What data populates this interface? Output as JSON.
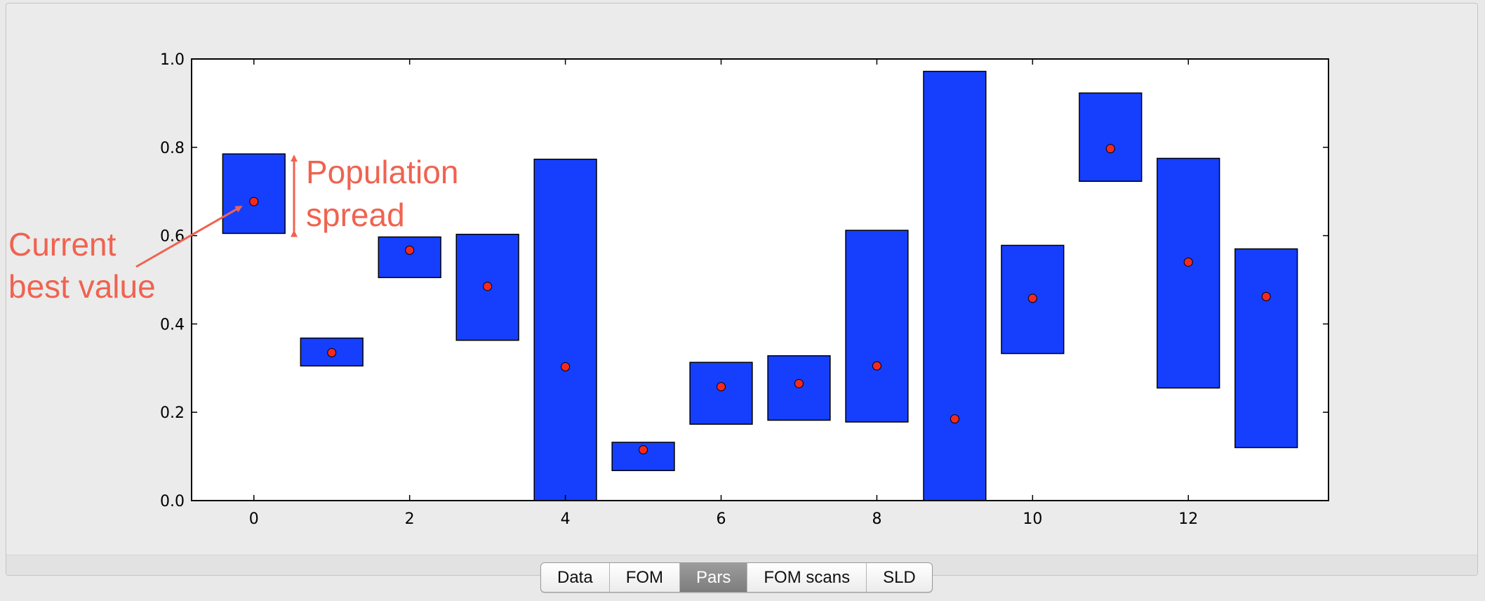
{
  "chart_data": {
    "type": "bar",
    "x": [
      0,
      1,
      2,
      3,
      4,
      5,
      6,
      7,
      8,
      9,
      10,
      11,
      12,
      13
    ],
    "bar_low": [
      0.605,
      0.305,
      0.505,
      0.363,
      0.0,
      0.068,
      0.173,
      0.182,
      0.178,
      0.0,
      0.333,
      0.723,
      0.255,
      0.12
    ],
    "bar_high": [
      0.785,
      0.368,
      0.597,
      0.603,
      0.773,
      0.132,
      0.313,
      0.328,
      0.612,
      0.972,
      0.578,
      0.923,
      0.775,
      0.57
    ],
    "best_values": [
      0.677,
      0.335,
      0.567,
      0.485,
      0.303,
      0.115,
      0.258,
      0.265,
      0.305,
      0.185,
      0.458,
      0.797,
      0.54,
      0.462
    ],
    "xlim": [
      -0.8,
      13.8
    ],
    "ylim": [
      0.0,
      1.0
    ],
    "xticks": [
      0,
      2,
      4,
      6,
      8,
      10,
      12
    ],
    "yticks": [
      0.0,
      0.2,
      0.4,
      0.6,
      0.8,
      1.0
    ],
    "xtick_labels": [
      "0",
      "2",
      "4",
      "6",
      "8",
      "10",
      "12"
    ],
    "ytick_labels": [
      "0.0",
      "0.2",
      "0.4",
      "0.6",
      "0.8",
      "1.0"
    ],
    "title": "",
    "xlabel": "",
    "ylabel": "",
    "grid": false,
    "bar_color": "#163ffd",
    "point_color": "#f42a1f",
    "annotation_color": "#ef6350",
    "annotations": {
      "spread": [
        "Population",
        "spread"
      ],
      "best": [
        "Current",
        "best value"
      ]
    }
  },
  "tabs": [
    {
      "label": "Data",
      "active": false
    },
    {
      "label": "FOM",
      "active": false
    },
    {
      "label": "Pars",
      "active": true
    },
    {
      "label": "FOM scans",
      "active": false
    },
    {
      "label": "SLD",
      "active": false
    }
  ]
}
